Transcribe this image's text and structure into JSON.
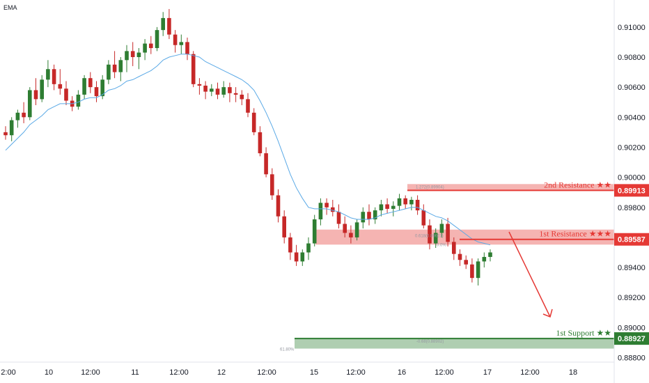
{
  "indicator_label": "EMA",
  "colors": {
    "up": "#2e7d32",
    "down": "#c62828",
    "ema": "#5aa9e6",
    "resistance": "#e53935",
    "support": "#2e7d32",
    "arrow": "#e53935"
  },
  "chart_data": {
    "type": "candlestick",
    "title": "",
    "xlabel": "",
    "ylabel": "",
    "ylim": [
      0.8877,
      0.9118
    ],
    "grid": false,
    "y_ticks": [
      "0.91000",
      "0.90800",
      "0.90600",
      "0.90400",
      "0.90200",
      "0.90000",
      "0.89800",
      "0.89600",
      "0.89400",
      "0.89200",
      "0.89000",
      "0.88800"
    ],
    "x_ticks": [
      "2:00",
      "10",
      "12:00",
      "11",
      "12:00",
      "12",
      "12:00",
      "15",
      "12:00",
      "16",
      "12:00",
      "17",
      "12:00",
      "18"
    ],
    "ohlc": [
      [
        0.903,
        0.9034,
        0.9025,
        0.9028
      ],
      [
        0.9028,
        0.904,
        0.9024,
        0.9038
      ],
      [
        0.9038,
        0.9045,
        0.9033,
        0.9043
      ],
      [
        0.9043,
        0.905,
        0.9036,
        0.904
      ],
      [
        0.904,
        0.906,
        0.9038,
        0.9058
      ],
      [
        0.9058,
        0.9066,
        0.9048,
        0.9052
      ],
      [
        0.9052,
        0.9068,
        0.905,
        0.9065
      ],
      [
        0.9065,
        0.9078,
        0.906,
        0.9072
      ],
      [
        0.9072,
        0.9075,
        0.9058,
        0.9062
      ],
      [
        0.9062,
        0.9072,
        0.9055,
        0.9059
      ],
      [
        0.9059,
        0.9064,
        0.9048,
        0.9051
      ],
      [
        0.9051,
        0.9054,
        0.9044,
        0.9047
      ],
      [
        0.9047,
        0.9058,
        0.9045,
        0.9055
      ],
      [
        0.9055,
        0.9068,
        0.9052,
        0.9066
      ],
      [
        0.9066,
        0.907,
        0.9056,
        0.906
      ],
      [
        0.906,
        0.9064,
        0.905,
        0.9054
      ],
      [
        0.9054,
        0.9068,
        0.9052,
        0.9065
      ],
      [
        0.9065,
        0.9078,
        0.9062,
        0.9075
      ],
      [
        0.9075,
        0.9084,
        0.9066,
        0.907
      ],
      [
        0.907,
        0.908,
        0.9064,
        0.9078
      ],
      [
        0.9078,
        0.9088,
        0.907,
        0.9084
      ],
      [
        0.9084,
        0.909,
        0.9074,
        0.908
      ],
      [
        0.908,
        0.9086,
        0.9072,
        0.9083
      ],
      [
        0.9083,
        0.9092,
        0.9078,
        0.9089
      ],
      [
        0.9089,
        0.9094,
        0.9082,
        0.9086
      ],
      [
        0.9086,
        0.91,
        0.9084,
        0.9098
      ],
      [
        0.9098,
        0.911,
        0.9094,
        0.9106
      ],
      [
        0.9106,
        0.9112,
        0.9092,
        0.9095
      ],
      [
        0.9095,
        0.9098,
        0.9083,
        0.9088
      ],
      [
        0.9088,
        0.9095,
        0.9082,
        0.909
      ],
      [
        0.909,
        0.9093,
        0.9078,
        0.9082
      ],
      [
        0.9082,
        0.9084,
        0.906,
        0.9062
      ],
      [
        0.9062,
        0.9066,
        0.9055,
        0.9061
      ],
      [
        0.9061,
        0.9064,
        0.9052,
        0.9057
      ],
      [
        0.9057,
        0.9062,
        0.9054,
        0.9059
      ],
      [
        0.9059,
        0.9063,
        0.9052,
        0.9055
      ],
      [
        0.9055,
        0.9064,
        0.9053,
        0.906
      ],
      [
        0.906,
        0.9063,
        0.905,
        0.9056
      ],
      [
        0.9056,
        0.906,
        0.905,
        0.9055
      ],
      [
        0.9055,
        0.9058,
        0.9048,
        0.9052
      ],
      [
        0.9052,
        0.9056,
        0.904,
        0.9043
      ],
      [
        0.9043,
        0.9046,
        0.9028,
        0.903
      ],
      [
        0.903,
        0.9034,
        0.9014,
        0.9016
      ],
      [
        0.9016,
        0.902,
        0.9,
        0.9002
      ],
      [
        0.9002,
        0.9006,
        0.8985,
        0.8988
      ],
      [
        0.8988,
        0.8992,
        0.897,
        0.8974
      ],
      [
        0.8974,
        0.8978,
        0.8956,
        0.896
      ],
      [
        0.896,
        0.8963,
        0.8945,
        0.895
      ],
      [
        0.895,
        0.8955,
        0.8941,
        0.8944
      ],
      [
        0.8944,
        0.8952,
        0.8941,
        0.895
      ],
      [
        0.895,
        0.896,
        0.8945,
        0.8956
      ],
      [
        0.8956,
        0.8975,
        0.8954,
        0.8972
      ],
      [
        0.8972,
        0.8986,
        0.8968,
        0.8983
      ],
      [
        0.8983,
        0.8986,
        0.8975,
        0.898
      ],
      [
        0.898,
        0.8985,
        0.8974,
        0.8977
      ],
      [
        0.8977,
        0.8982,
        0.8966,
        0.8969
      ],
      [
        0.8969,
        0.8974,
        0.896,
        0.8963
      ],
      [
        0.8963,
        0.8968,
        0.8956,
        0.896
      ],
      [
        0.896,
        0.8972,
        0.8958,
        0.897
      ],
      [
        0.897,
        0.898,
        0.8966,
        0.8977
      ],
      [
        0.8977,
        0.8982,
        0.8968,
        0.8972
      ],
      [
        0.8972,
        0.898,
        0.8969,
        0.8978
      ],
      [
        0.8978,
        0.8985,
        0.8974,
        0.8982
      ],
      [
        0.8982,
        0.8986,
        0.8976,
        0.8979
      ],
      [
        0.8979,
        0.8984,
        0.8974,
        0.8981
      ],
      [
        0.8981,
        0.8989,
        0.8978,
        0.8986
      ],
      [
        0.8986,
        0.8988,
        0.8979,
        0.8982
      ],
      [
        0.8982,
        0.8987,
        0.8978,
        0.8985
      ],
      [
        0.8985,
        0.8988,
        0.8975,
        0.8978
      ],
      [
        0.8978,
        0.8982,
        0.8966,
        0.8968
      ],
      [
        0.8968,
        0.8972,
        0.8952,
        0.8956
      ],
      [
        0.8956,
        0.8966,
        0.8953,
        0.8963
      ],
      [
        0.8963,
        0.8972,
        0.896,
        0.8969
      ],
      [
        0.8969,
        0.8973,
        0.8954,
        0.8957
      ],
      [
        0.8957,
        0.896,
        0.8945,
        0.8949
      ],
      [
        0.8949,
        0.8952,
        0.8941,
        0.8945
      ],
      [
        0.8945,
        0.8948,
        0.8939,
        0.8942
      ],
      [
        0.8942,
        0.8946,
        0.893,
        0.8933
      ],
      [
        0.8933,
        0.8946,
        0.8928,
        0.8944
      ],
      [
        0.8944,
        0.895,
        0.894,
        0.8947
      ],
      [
        0.8947,
        0.8952,
        0.8944,
        0.895
      ]
    ],
    "ema": [
      0.9018,
      0.9022,
      0.9026,
      0.903,
      0.9035,
      0.9038,
      0.9041,
      0.9045,
      0.9047,
      0.9049,
      0.9049,
      0.9049,
      0.905,
      0.9052,
      0.9053,
      0.9053,
      0.9055,
      0.9058,
      0.9059,
      0.9061,
      0.9064,
      0.9065,
      0.9067,
      0.9069,
      0.9071,
      0.9074,
      0.9078,
      0.908,
      0.9081,
      0.9082,
      0.9082,
      0.9081,
      0.908,
      0.9077,
      0.9075,
      0.9073,
      0.9071,
      0.9069,
      0.9067,
      0.9065,
      0.9062,
      0.9058,
      0.9051,
      0.9043,
      0.9034,
      0.9024,
      0.9013,
      0.9002,
      0.8993,
      0.8986,
      0.898,
      0.8979,
      0.8979,
      0.8979,
      0.8978,
      0.8977,
      0.8975,
      0.8973,
      0.8972,
      0.8972,
      0.8972,
      0.8973,
      0.8975,
      0.8976,
      0.8977,
      0.8978,
      0.8979,
      0.898,
      0.898,
      0.8978,
      0.8976,
      0.8974,
      0.8973,
      0.8971,
      0.8968,
      0.8965,
      0.8962,
      0.8959,
      0.8957,
      0.8956,
      0.8955
    ],
    "levels": [
      {
        "name": "2nd Resistance",
        "stars": "★★",
        "value": "0.89913",
        "price": 0.89913,
        "zone": [
          0.89913,
          0.89955
        ],
        "fib_label": "1.272(0.89904)",
        "kind": "resistance"
      },
      {
        "name": "1st Resistance",
        "stars": "★★★",
        "value": "0.89587",
        "price": 0.89587,
        "zone": [
          0.89552,
          0.89652
        ],
        "fib_label": "0.618(0.89623)",
        "fib_label_2": "0.0%",
        "kind": "resistance"
      },
      {
        "name": "1st Support",
        "stars": "★★",
        "value": "0.88927",
        "price": 0.88927,
        "zone": [
          0.8886,
          0.88927
        ],
        "fib_label": "-0.68(0.88902)",
        "fib_label_2": "61.80%",
        "kind": "support"
      }
    ]
  }
}
